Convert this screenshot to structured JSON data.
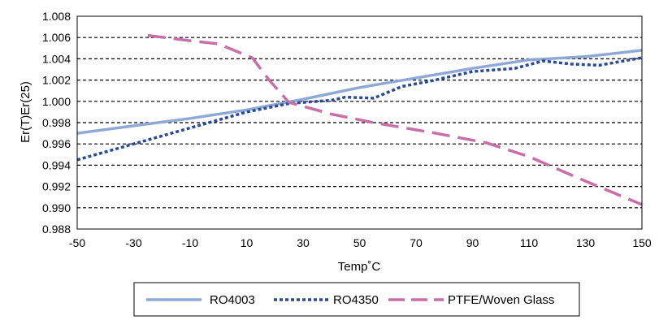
{
  "chart_data": {
    "type": "line",
    "title": "",
    "xlabel": "Temp˚C",
    "ylabel": "Er(T)Er(25)",
    "xlim": [
      -50,
      150
    ],
    "ylim": [
      0.988,
      1.008
    ],
    "x_ticks": [
      "-50",
      "-30",
      "-10",
      "10",
      "30",
      "50",
      "70",
      "90",
      "110",
      "130",
      "150"
    ],
    "y_ticks": [
      "0.988",
      "0.990",
      "0.992",
      "0.994",
      "0.996",
      "0.998",
      "1.000",
      "1.002",
      "1.004",
      "1.006",
      "1.008"
    ],
    "grid": "horizontal dashed",
    "legend_position": "bottom",
    "series": [
      {
        "name": "RO4003",
        "color": "#8fa9d6",
        "style": "solid",
        "x": [
          -50,
          -30,
          -10,
          10,
          30,
          50,
          70,
          90,
          110,
          130,
          150
        ],
        "y": [
          0.997,
          0.9977,
          0.9984,
          0.9992,
          1.0002,
          1.0013,
          1.0022,
          1.0031,
          1.0039,
          1.0042,
          1.0048
        ]
      },
      {
        "name": "RO4350",
        "color": "#2a4a96",
        "style": "dotted",
        "x": [
          -50,
          -30,
          -10,
          10,
          25,
          30,
          40,
          45,
          55,
          65,
          75,
          90,
          105,
          115,
          125,
          135,
          150
        ],
        "y": [
          0.9945,
          0.996,
          0.9975,
          0.999,
          0.9998,
          0.9999,
          1.0001,
          1.0004,
          1.0003,
          1.0014,
          1.0019,
          1.0028,
          1.0031,
          1.0038,
          1.0035,
          1.0034,
          1.0041
        ]
      },
      {
        "name": "PTFE/Woven Glass",
        "color": "#c86ea8",
        "style": "dashed",
        "x": [
          -25,
          -10,
          0,
          12,
          18,
          25,
          40,
          55,
          75,
          95,
          110,
          130,
          150
        ],
        "y": [
          1.0062,
          1.0057,
          1.0054,
          1.0041,
          1.002,
          0.9999,
          0.9988,
          0.998,
          0.9971,
          0.9961,
          0.9948,
          0.9925,
          0.9903
        ]
      }
    ]
  }
}
